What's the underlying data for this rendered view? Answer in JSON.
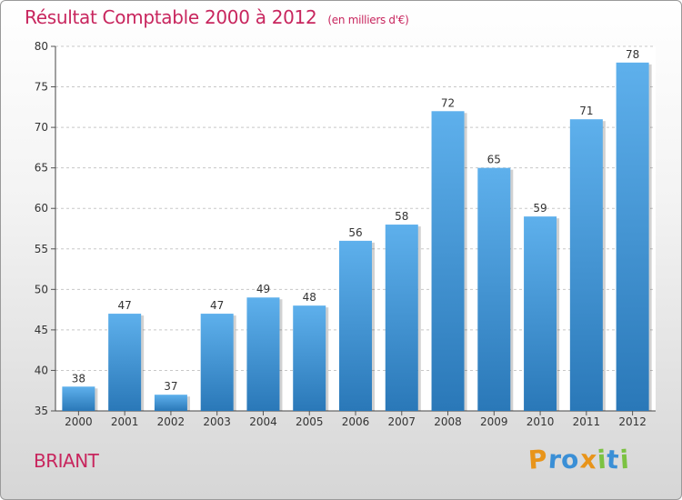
{
  "chart_data": {
    "type": "bar",
    "title": "Résultat Comptable 2000 à 2012",
    "unit_note": "(en milliers d'€)",
    "categories": [
      "2000",
      "2001",
      "2002",
      "2003",
      "2004",
      "2005",
      "2006",
      "2007",
      "2008",
      "2009",
      "2010",
      "2011",
      "2012"
    ],
    "values": [
      38,
      47,
      37,
      47,
      49,
      48,
      56,
      58,
      72,
      65,
      59,
      71,
      78
    ],
    "ylim": [
      35,
      80
    ],
    "yticks": [
      35,
      40,
      45,
      50,
      55,
      60,
      65,
      70,
      75,
      80
    ],
    "grid": true,
    "xlabel": "",
    "ylabel": ""
  },
  "location": "BRIANT",
  "brand": {
    "letters": [
      "P",
      "r",
      "o",
      "x",
      "i",
      "t",
      "i"
    ],
    "colors": [
      "#e8941a",
      "#3a8fd6",
      "#3a8fd6",
      "#e8941a",
      "#7cc242",
      "#3a8fd6",
      "#7cc242"
    ]
  },
  "colors": {
    "bar_top": "#5eb0ec",
    "bar_bottom": "#2a78b8",
    "accent": "#c8265e"
  }
}
